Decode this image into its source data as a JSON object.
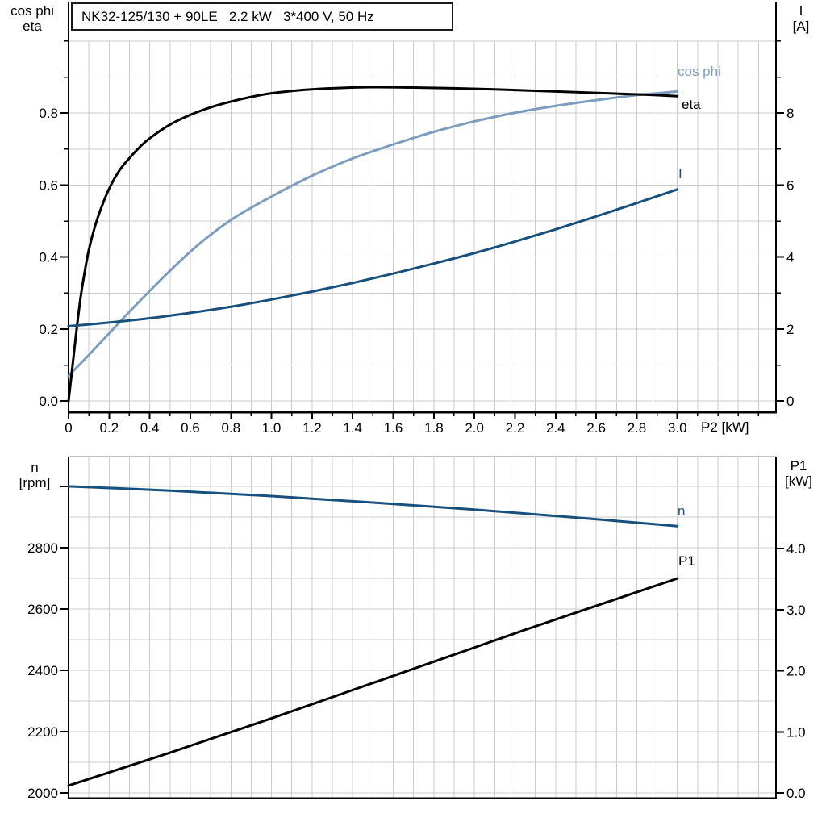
{
  "palette": {
    "black": "#000000",
    "steel_blue": "#7C9DBE",
    "dark_blue": "#17507D",
    "grid": "#cbcbcb",
    "axis": "#000000",
    "chart2_top_border": "#808080",
    "background": "#ffffff"
  },
  "header": {
    "title": "NK32-125/130 + 90LE   2.2 kW   3*400 V, 50 Hz"
  },
  "chart_data": [
    {
      "type": "line",
      "title": "NK32-125/130 + 90LE   2.2 kW   3*400 V, 50 Hz",
      "x": {
        "label": "P2 [kW]",
        "min": 0,
        "max": 3.486,
        "tick_vals": [
          0,
          0.2,
          0.4,
          0.6,
          0.8,
          1.0,
          1.2,
          1.4,
          1.6,
          1.8,
          2.0,
          2.2,
          2.4,
          2.6,
          2.8,
          3.0
        ],
        "tick_labels": [
          "0",
          "0.2",
          "0.4",
          "0.6",
          "0.8",
          "1.0",
          "1.2",
          "1.4",
          "1.6",
          "1.8",
          "2.0",
          "2.2",
          "2.4",
          "2.6",
          "2.8",
          "3.0"
        ],
        "minor_step": 0.1,
        "minor_min": 0,
        "minor_max": 3.4,
        "grid_step": 0.1,
        "grid_max": 3.4
      },
      "y_left": {
        "header": [
          "cos phi",
          "eta"
        ],
        "min": -0.031,
        "max": 1.085,
        "tick_vals": [
          0,
          0.2,
          0.4,
          0.6,
          0.8
        ],
        "tick_labels": [
          "0.0",
          "0.2",
          "0.4",
          "0.6",
          "0.8"
        ],
        "minor_step": 0.1,
        "minor_min": 0,
        "minor_max": 1.0,
        "grid": {
          "min": 0,
          "max": 1.0,
          "step": 0.1
        }
      },
      "y_right": {
        "header": [
          "I",
          "[A]"
        ],
        "min": -0.31,
        "max": 10.85,
        "tick_vals": [
          0,
          2,
          4,
          6,
          8
        ],
        "tick_labels": [
          "0",
          "2",
          "4",
          "6",
          "8"
        ],
        "minor_step": 1,
        "minor_min": 0,
        "minor_max": 10
      },
      "series": [
        {
          "name": "cos phi",
          "axis": "left",
          "color_key": "steel_blue",
          "width": 3,
          "points": [
            [
              0,
              0.07
            ],
            [
              0.1,
              0.128
            ],
            [
              0.2,
              0.188
            ],
            [
              0.3,
              0.248
            ],
            [
              0.4,
              0.306
            ],
            [
              0.5,
              0.362
            ],
            [
              0.6,
              0.415
            ],
            [
              0.7,
              0.462
            ],
            [
              0.8,
              0.503
            ],
            [
              0.9,
              0.537
            ],
            [
              1.0,
              0.568
            ],
            [
              1.1,
              0.598
            ],
            [
              1.2,
              0.626
            ],
            [
              1.3,
              0.651
            ],
            [
              1.4,
              0.674
            ],
            [
              1.5,
              0.694
            ],
            [
              1.6,
              0.713
            ],
            [
              1.7,
              0.731
            ],
            [
              1.8,
              0.748
            ],
            [
              1.9,
              0.763
            ],
            [
              2.0,
              0.777
            ],
            [
              2.2,
              0.801
            ],
            [
              2.4,
              0.82
            ],
            [
              2.6,
              0.836
            ],
            [
              2.8,
              0.85
            ],
            [
              3.0,
              0.86
            ]
          ]
        },
        {
          "name": "eta",
          "axis": "left",
          "color_key": "black",
          "width": 3,
          "points": [
            [
              0,
              0
            ],
            [
              0.02,
              0.1
            ],
            [
              0.04,
              0.2
            ],
            [
              0.06,
              0.29
            ],
            [
              0.08,
              0.36
            ],
            [
              0.1,
              0.42
            ],
            [
              0.13,
              0.485
            ],
            [
              0.16,
              0.535
            ],
            [
              0.2,
              0.59
            ],
            [
              0.25,
              0.64
            ],
            [
              0.3,
              0.675
            ],
            [
              0.35,
              0.705
            ],
            [
              0.4,
              0.73
            ],
            [
              0.5,
              0.768
            ],
            [
              0.6,
              0.795
            ],
            [
              0.7,
              0.816
            ],
            [
              0.8,
              0.832
            ],
            [
              0.9,
              0.845
            ],
            [
              1.0,
              0.855
            ],
            [
              1.15,
              0.864
            ],
            [
              1.3,
              0.869
            ],
            [
              1.5,
              0.872
            ],
            [
              1.7,
              0.871
            ],
            [
              1.9,
              0.869
            ],
            [
              2.1,
              0.866
            ],
            [
              2.3,
              0.862
            ],
            [
              2.5,
              0.858
            ],
            [
              2.7,
              0.854
            ],
            [
              2.85,
              0.851
            ],
            [
              3.0,
              0.847
            ]
          ]
        },
        {
          "name": "I",
          "axis": "right",
          "color_key": "dark_blue",
          "width": 3,
          "points": [
            [
              0,
              2.08
            ],
            [
              0.2,
              2.18
            ],
            [
              0.4,
              2.3
            ],
            [
              0.6,
              2.45
            ],
            [
              0.8,
              2.62
            ],
            [
              1.0,
              2.82
            ],
            [
              1.2,
              3.04
            ],
            [
              1.4,
              3.28
            ],
            [
              1.6,
              3.54
            ],
            [
              1.8,
              3.82
            ],
            [
              2.0,
              4.11
            ],
            [
              2.2,
              4.43
            ],
            [
              2.4,
              4.77
            ],
            [
              2.6,
              5.13
            ],
            [
              2.8,
              5.5
            ],
            [
              3.0,
              5.88
            ]
          ]
        }
      ],
      "curve_labels": [
        {
          "text": "cos phi",
          "color_key": "steel_blue"
        },
        {
          "text": "eta",
          "color_key": "black"
        },
        {
          "text": "I",
          "color_key": "dark_blue"
        }
      ]
    },
    {
      "type": "line",
      "x": {
        "label": "",
        "min": 0,
        "max": 3.486,
        "tick_vals": [],
        "tick_labels": [],
        "minor_step": 0,
        "minor_min": 0,
        "minor_max": 0,
        "grid_step": 0.1,
        "grid_max": 3.4
      },
      "y_left": {
        "header": [
          "n",
          "[rpm]"
        ],
        "min": 1984,
        "max": 3097,
        "tick_vals": [
          2000,
          2200,
          2400,
          2600,
          2800,
          3000
        ],
        "tick_labels": [
          "2000",
          "2200",
          "2400",
          "2600",
          "2800",
          ""
        ],
        "minor_step": 0,
        "minor_min": 0,
        "minor_max": 0,
        "grid": {
          "min": 2000,
          "max": 3100,
          "step": 100
        }
      },
      "y_right": {
        "header": [
          "P1",
          "[kW]"
        ],
        "min": -0.079,
        "max": 5.505,
        "tick_vals": [
          0,
          1,
          2,
          3,
          4
        ],
        "tick_labels": [
          "0.0",
          "1.0",
          "2.0",
          "3.0",
          "4.0"
        ],
        "minor_step": 0,
        "minor_min": 0,
        "minor_max": 0
      },
      "series": [
        {
          "name": "n",
          "axis": "left",
          "color_key": "dark_blue",
          "width": 3,
          "points": [
            [
              0,
              3000
            ],
            [
              0.5,
              2986
            ],
            [
              1.0,
              2968
            ],
            [
              1.5,
              2947
            ],
            [
              2.0,
              2924
            ],
            [
              2.5,
              2898
            ],
            [
              3.0,
              2870
            ]
          ]
        },
        {
          "name": "P1",
          "axis": "right",
          "color_key": "black",
          "width": 3,
          "points": [
            [
              0,
              0.12
            ],
            [
              0.25,
              0.39
            ],
            [
              0.5,
              0.66
            ],
            [
              0.75,
              0.94
            ],
            [
              1.0,
              1.22
            ],
            [
              1.25,
              1.51
            ],
            [
              1.5,
              1.8
            ],
            [
              1.75,
              2.09
            ],
            [
              2.0,
              2.38
            ],
            [
              2.25,
              2.67
            ],
            [
              2.5,
              2.95
            ],
            [
              2.75,
              3.23
            ],
            [
              3.0,
              3.51
            ]
          ]
        }
      ],
      "curve_labels": [
        {
          "text": "n",
          "color_key": "dark_blue"
        },
        {
          "text": "P1",
          "color_key": "black"
        }
      ]
    }
  ]
}
